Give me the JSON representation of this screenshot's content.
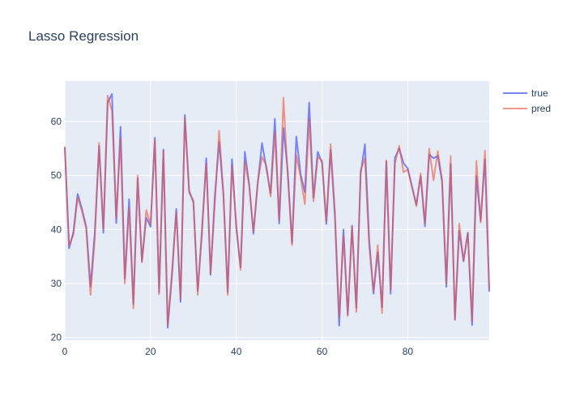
{
  "chart_data": {
    "type": "line",
    "title": "Lasso Regression",
    "xlabel": "",
    "ylabel": "",
    "xlim": [
      0,
      99
    ],
    "ylim": [
      19.5,
      67.5
    ],
    "x_ticks": [
      0,
      20,
      40,
      60,
      80
    ],
    "y_ticks": [
      20,
      30,
      40,
      50,
      60
    ],
    "grid": true,
    "legend_position": "top-right",
    "x": [
      0,
      1,
      2,
      3,
      4,
      5,
      6,
      7,
      8,
      9,
      10,
      11,
      12,
      13,
      14,
      15,
      16,
      17,
      18,
      19,
      20,
      21,
      22,
      23,
      24,
      25,
      26,
      27,
      28,
      29,
      30,
      31,
      32,
      33,
      34,
      35,
      36,
      37,
      38,
      39,
      40,
      41,
      42,
      43,
      44,
      45,
      46,
      47,
      48,
      49,
      50,
      51,
      52,
      53,
      54,
      55,
      56,
      57,
      58,
      59,
      60,
      61,
      62,
      63,
      64,
      65,
      66,
      67,
      68,
      69,
      70,
      71,
      72,
      73,
      74,
      75,
      76,
      77,
      78,
      79,
      80,
      81,
      82,
      83,
      84,
      85,
      86,
      87,
      88,
      89,
      90,
      91,
      92,
      93,
      94,
      95,
      96,
      97,
      98,
      99
    ],
    "series": [
      {
        "name": "true",
        "color": "#636efa",
        "opacity": 0.85,
        "values": [
          55.2,
          36.5,
          39.5,
          46.6,
          43.8,
          40.5,
          29.4,
          39.5,
          55.5,
          39.4,
          63.5,
          65.1,
          41.2,
          59.0,
          30.9,
          45.6,
          26.2,
          49.5,
          34.1,
          42.2,
          40.5,
          57.0,
          28.4,
          54.8,
          21.8,
          31.4,
          43.8,
          26.6,
          61.2,
          47.2,
          45.0,
          28.6,
          39.4,
          53.2,
          31.6,
          46.2,
          56.2,
          46.4,
          28.4,
          53.0,
          40.2,
          33.0,
          54.4,
          48.4,
          39.2,
          48.5,
          56.0,
          51.4,
          46.7,
          60.5,
          41.1,
          58.8,
          50.8,
          37.5,
          57.2,
          50.3,
          46.9,
          63.5,
          45.9,
          54.4,
          52.3,
          41.0,
          54.8,
          42.5,
          22.2,
          40.0,
          24.2,
          40.7,
          25.5,
          50.3,
          55.8,
          38.1,
          28.1,
          35.8,
          25.6,
          52.6,
          28.1,
          53.3,
          55.0,
          52.3,
          51.3,
          47.9,
          44.6,
          49.9,
          40.6,
          53.9,
          53.2,
          53.6,
          48.8,
          29.4,
          52.1,
          23.4,
          39.8,
          34.1,
          39.4,
          22.3,
          49.9,
          41.6,
          53.0,
          28.5
        ]
      },
      {
        "name": "pred",
        "color": "#ef553b",
        "opacity": 0.6,
        "values": [
          55.4,
          37.0,
          39.0,
          46.0,
          43.4,
          40.2,
          27.9,
          38.4,
          56.0,
          40.1,
          64.8,
          62.0,
          42.1,
          56.8,
          30.0,
          44.0,
          25.4,
          50.0,
          33.9,
          43.6,
          40.9,
          56.6,
          28.0,
          54.6,
          22.3,
          32.2,
          43.2,
          27.2,
          60.7,
          46.8,
          45.4,
          27.9,
          40.4,
          52.2,
          31.8,
          44.8,
          58.3,
          46.5,
          27.9,
          51.9,
          41.0,
          32.5,
          52.6,
          48.2,
          39.6,
          48.8,
          53.4,
          51.9,
          46.1,
          58.0,
          41.7,
          64.4,
          49.9,
          37.1,
          53.8,
          49.6,
          44.7,
          60.5,
          45.2,
          53.4,
          52.8,
          41.5,
          55.8,
          43.4,
          23.7,
          38.9,
          24.0,
          40.6,
          24.7,
          50.9,
          53.2,
          36.9,
          28.5,
          37.1,
          24.5,
          52.8,
          28.8,
          52.2,
          55.5,
          50.6,
          51.1,
          47.8,
          44.3,
          50.4,
          41.2,
          55.0,
          49.1,
          54.5,
          49.3,
          30.0,
          53.6,
          23.2,
          41.1,
          34.2,
          39.4,
          23.1,
          52.7,
          41.3,
          54.6,
          29.0
        ]
      }
    ]
  }
}
